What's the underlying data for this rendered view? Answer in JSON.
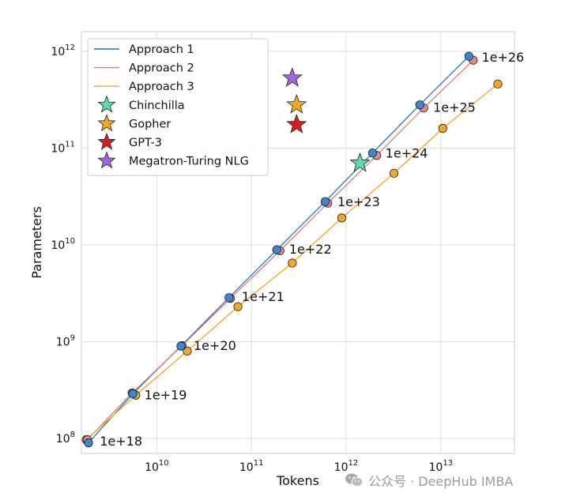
{
  "chart_data": {
    "type": "line",
    "xlabel": "Tokens",
    "ylabel": "Parameters",
    "xscale": "log",
    "yscale": "log",
    "xlim": [
      1600000000.0,
      60000000000000.0
    ],
    "ylim": [
      70000000.0,
      1600000000000.0
    ],
    "grid": true,
    "legend_position": "top-left",
    "x_ticks": [
      {
        "value": 10000000000.0,
        "base": "10",
        "exp": "10"
      },
      {
        "value": 100000000000.0,
        "base": "10",
        "exp": "11"
      },
      {
        "value": 1000000000000.0,
        "base": "10",
        "exp": "12"
      },
      {
        "value": 10000000000000.0,
        "base": "10",
        "exp": "13"
      }
    ],
    "y_ticks": [
      {
        "value": 100000000.0,
        "base": "10",
        "exp": "8"
      },
      {
        "value": 1000000000.0,
        "base": "10",
        "exp": "9"
      },
      {
        "value": 10000000000.0,
        "base": "10",
        "exp": "10"
      },
      {
        "value": 100000000000.0,
        "base": "10",
        "exp": "11"
      },
      {
        "value": 1000000000000.0,
        "base": "10",
        "exp": "12"
      }
    ],
    "series": [
      {
        "name": "Approach 1",
        "color": "#1f77b4",
        "marker_color": "#3a87d4",
        "x": [
          1900000000.0,
          5600000000.0,
          18000000000.0,
          58000000000.0,
          185000000000.0,
          600000000000.0,
          1900000000000.0,
          6000000000000.0,
          19800000000000.0
        ],
        "y": [
          90000000.0,
          290000000.0,
          900000000.0,
          2850000000.0,
          8900000000.0,
          28000000000.0,
          89000000000.0,
          280000000000.0,
          890000000000.0
        ]
      },
      {
        "name": "Approach 2",
        "color": "#e07a6a",
        "marker_color": "#e8888a",
        "x": [
          1850000000.0,
          5500000000.0,
          18500000000.0,
          60000000000.0,
          200000000000.0,
          640000000000.0,
          2100000000000.0,
          6600000000000.0,
          22000000000000.0
        ],
        "y": [
          97000000.0,
          295000000.0,
          910000000.0,
          2800000000.0,
          8700000000.0,
          27000000000.0,
          84000000000.0,
          260000000000.0,
          810000000000.0
        ]
      },
      {
        "name": "Approach 3",
        "color": "#f2a51a",
        "marker_color": "#f0a830",
        "x": [
          1800000000.0,
          6000000000.0,
          21000000000.0,
          72000000000.0,
          270000000000.0,
          900000000000.0,
          3200000000000.0,
          10500000000000.0,
          40000000000000.0
        ],
        "y": [
          97000000.0,
          280000000.0,
          800000000.0,
          2300000000.0,
          6500000000.0,
          19000000000.0,
          55000000000.0,
          160000000000.0,
          460000000000.0
        ]
      }
    ],
    "models": [
      {
        "name": "Chinchilla",
        "x": 1400000000000.0,
        "y": 70000000000.0,
        "color": "#5fd9b0"
      },
      {
        "name": "Gopher",
        "x": 300000000000.0,
        "y": 280000000000.0,
        "color": "#f5a623"
      },
      {
        "name": "GPT-3",
        "x": 300000000000.0,
        "y": 175000000000.0,
        "color": "#d62020"
      },
      {
        "name": "Megatron-Turing NLG",
        "x": 270000000000.0,
        "y": 530000000000.0,
        "color": "#a366e0"
      }
    ],
    "annotations": [
      {
        "text": "1e+18",
        "x": 2500000000.0,
        "y": 95000000.0
      },
      {
        "text": "1e+19",
        "x": 7400000000.0,
        "y": 285000000.0
      },
      {
        "text": "1e+20",
        "x": 24500000000.0,
        "y": 920000000.0
      },
      {
        "text": "1e+21",
        "x": 79000000000.0,
        "y": 2950000000.0
      },
      {
        "text": "1e+22",
        "x": 250000000000.0,
        "y": 9100000000.0
      },
      {
        "text": "1e+23",
        "x": 810000000000.0,
        "y": 28000000000.0
      },
      {
        "text": "1e+24",
        "x": 2600000000000.0,
        "y": 89000000000.0
      },
      {
        "text": "1e+25",
        "x": 8300000000000.0,
        "y": 265000000000.0
      },
      {
        "text": "1e+26",
        "x": 27000000000000.0,
        "y": 880000000000.0
      }
    ]
  },
  "watermark": {
    "text": "公众号 · DeepHub IMBA",
    "icon": "wechat-icon"
  }
}
